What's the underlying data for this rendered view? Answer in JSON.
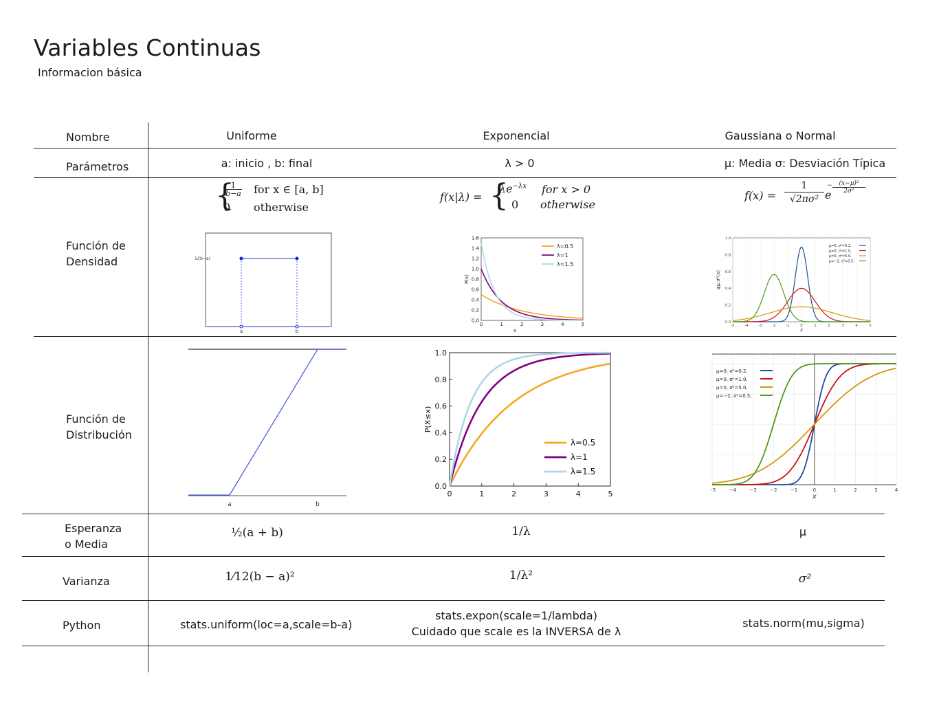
{
  "header": {
    "title": "Variables Continuas",
    "subtitle": "Informacion básica"
  },
  "columns": {
    "name": "Nombre",
    "uniform": "Uniforme",
    "exponential": "Exponencial",
    "normal": "Gaussiana o Normal"
  },
  "rows": {
    "params": {
      "label": "Parámetros",
      "uniform": "a: inicio , b: final",
      "exponential": "λ > 0",
      "normal": "μ: Media  σ: Desviación Típica"
    },
    "density": {
      "label_line1": "Función de",
      "label_line2": "Densidad",
      "uniform_formula": {
        "frac_num": "1",
        "frac_den": "b−a",
        "case1_cond": "for x ∈ [a, b]",
        "case2_val": "0",
        "case2_cond": "otherwise"
      },
      "exponential_formula": {
        "lhs": "f(x|λ) =",
        "case1_val": "λe",
        "case1_exp": "−λx",
        "case1_cond": "for x > 0",
        "case2_val": "0",
        "case2_cond": "otherwise"
      },
      "normal_formula": {
        "lhs": "f(x) =",
        "num": "1",
        "den": "√2πσ²",
        "exp": "e",
        "exp_sup_num": "(x−μ)²",
        "exp_sup_den": "2σ²"
      }
    },
    "distribution": {
      "label_line1": "Función de",
      "label_line2": "Distribución"
    },
    "mean": {
      "label_line1": "Esperanza",
      "label_line2": "o  Media",
      "uniform": "½(a + b)",
      "exponential": "1/λ",
      "normal": "μ"
    },
    "variance": {
      "label": "Varianza",
      "uniform": "1⁄12(b − a)²",
      "exponential": "1/λ²",
      "normal": "σ²"
    },
    "python": {
      "label": "Python",
      "uniform": "stats.uniform(loc=a,scale=b-a)",
      "exponential_line1": "stats.expon(scale=1/lambda)",
      "exponential_line2": "Cuidado que scale es la  INVERSA de  λ",
      "normal": "stats.norm(mu,sigma)"
    }
  },
  "chart_data": [
    {
      "type": "line",
      "id": "uniform-pdf",
      "x_ticks": [
        "a",
        "b"
      ],
      "y_ticks": [
        "1/(b−a)"
      ],
      "series": [
        {
          "x": [
            "a",
            "b"
          ],
          "values": [
            1,
            1
          ]
        }
      ]
    },
    {
      "type": "line",
      "id": "exponential-pdf",
      "xlabel": "x",
      "ylabel": "P(x)",
      "xlim": [
        0,
        5
      ],
      "ylim": [
        0,
        1.6
      ],
      "x_ticks": [
        0,
        1,
        2,
        3,
        4,
        5
      ],
      "y_ticks": [
        0.0,
        0.2,
        0.4,
        0.6,
        0.8,
        1.0,
        1.2,
        1.4,
        1.6
      ],
      "legend_position": "top-right",
      "series": [
        {
          "name": "λ=0.5",
          "lambda": 0.5,
          "color": "#f5a623"
        },
        {
          "name": "λ=1",
          "lambda": 1,
          "color": "#800080"
        },
        {
          "name": "λ=1.5",
          "lambda": 1.5,
          "color": "#add8e6"
        }
      ]
    },
    {
      "type": "line",
      "id": "normal-pdf",
      "ylabel": "φμ,σ²(x)",
      "xlabel": "x",
      "xlim": [
        -5,
        5
      ],
      "ylim": [
        0,
        1.0
      ],
      "x_ticks": [
        -5,
        -4,
        -3,
        -2,
        -1,
        0,
        1,
        2,
        3,
        4,
        5
      ],
      "y_ticks": [
        0.0,
        0.2,
        0.4,
        0.6,
        0.8,
        1.0
      ],
      "legend_position": "top-right",
      "series": [
        {
          "name": "μ=0,  σ²=0.2,",
          "mu": 0,
          "var": 0.2,
          "color": "#1f4e99"
        },
        {
          "name": "μ=0,  σ²=1.0,",
          "mu": 0,
          "var": 1.0,
          "color": "#cc1111"
        },
        {
          "name": "μ=0,  σ²=5.0,",
          "mu": 0,
          "var": 5.0,
          "color": "#d4960a"
        },
        {
          "name": "μ=−2, σ²=0.5,",
          "mu": -2,
          "var": 0.5,
          "color": "#4d9a1c"
        }
      ]
    },
    {
      "type": "line",
      "id": "uniform-cdf",
      "x_ticks": [
        "a",
        "b"
      ],
      "series": [
        {
          "x": [
            "a",
            "b"
          ],
          "values": [
            0,
            1
          ]
        }
      ]
    },
    {
      "type": "line",
      "id": "exponential-cdf",
      "ylabel": "P(X≤x)",
      "xlim": [
        0,
        5
      ],
      "ylim": [
        0,
        1.0
      ],
      "x_ticks": [
        0,
        1,
        2,
        3,
        4,
        5
      ],
      "y_ticks": [
        0.0,
        0.2,
        0.4,
        0.6,
        0.8,
        1.0
      ],
      "legend_position": "bottom-right",
      "series": [
        {
          "name": "λ=0.5",
          "lambda": 0.5,
          "color": "#f5a623"
        },
        {
          "name": "λ=1",
          "lambda": 1,
          "color": "#800080"
        },
        {
          "name": "λ=1.5",
          "lambda": 1.5,
          "color": "#add8e6"
        }
      ]
    },
    {
      "type": "line",
      "id": "normal-cdf",
      "xlabel": "x",
      "xlim": [
        -5,
        4
      ],
      "x_ticks": [
        -5,
        -4,
        -3,
        -2,
        -1,
        0,
        1,
        2,
        3,
        4
      ],
      "legend_position": "top-left",
      "series": [
        {
          "name": "μ=0,   σ²=0.2,",
          "mu": 0,
          "var": 0.2,
          "color": "#1f4e99"
        },
        {
          "name": "μ=0,   σ²=1.0,",
          "mu": 0,
          "var": 1.0,
          "color": "#cc1111"
        },
        {
          "name": "μ=0,   σ²=5.0,",
          "mu": 0,
          "var": 5.0,
          "color": "#d4960a"
        },
        {
          "name": "μ=−2,  σ²=0.5,",
          "mu": -2,
          "var": 0.5,
          "color": "#4d9a1c"
        }
      ]
    }
  ]
}
